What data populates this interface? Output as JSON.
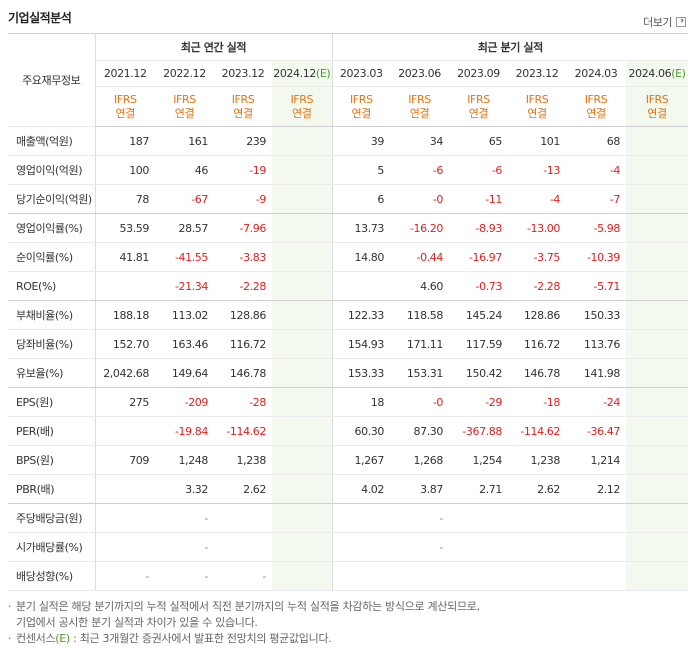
{
  "header": {
    "title": "기업실적분석",
    "more": "더보기"
  },
  "table": {
    "corner": "주요재무정보",
    "groups": [
      {
        "label": "최근 연간 실적",
        "span": 4
      },
      {
        "label": "최근 분기 실적",
        "span": 6
      }
    ],
    "columns": [
      {
        "period": "2021.12",
        "standard": "IFRS",
        "scope": "연결"
      },
      {
        "period": "2022.12",
        "standard": "IFRS",
        "scope": "연결"
      },
      {
        "period": "2023.12",
        "standard": "IFRS",
        "scope": "연결"
      },
      {
        "period": "2024.12",
        "estimate": "(E)",
        "standard": "IFRS",
        "scope": "연결"
      },
      {
        "period": "2023.03",
        "standard": "IFRS",
        "scope": "연결"
      },
      {
        "period": "2023.06",
        "standard": "IFRS",
        "scope": "연결"
      },
      {
        "period": "2023.09",
        "standard": "IFRS",
        "scope": "연결"
      },
      {
        "period": "2023.12",
        "standard": "IFRS",
        "scope": "연결"
      },
      {
        "period": "2024.03",
        "standard": "IFRS",
        "scope": "연결"
      },
      {
        "period": "2024.06",
        "estimate": "(E)",
        "standard": "IFRS",
        "scope": "연결"
      }
    ],
    "rows": [
      {
        "label": "매출액(억원)",
        "values": [
          "187",
          "161",
          "239",
          null,
          "39",
          "34",
          "65",
          "101",
          "68",
          null
        ]
      },
      {
        "label": "영업이익(억원)",
        "values": [
          "100",
          "46",
          "-19",
          null,
          "5",
          "-6",
          "-6",
          "-13",
          "-4",
          null
        ]
      },
      {
        "label": "당기순이익(억원)",
        "values": [
          "78",
          "-67",
          "-9",
          null,
          "6",
          "-0",
          "-11",
          "-4",
          "-7",
          null
        ]
      },
      {
        "label": "영업이익률(%)",
        "values": [
          "53.59",
          "28.57",
          "-7.96",
          null,
          "13.73",
          "-16.20",
          "-8.93",
          "-13.00",
          "-5.98",
          null
        ]
      },
      {
        "label": "순이익률(%)",
        "values": [
          "41.81",
          "-41.55",
          "-3.83",
          null,
          "14.80",
          "-0.44",
          "-16.97",
          "-3.75",
          "-10.39",
          null
        ]
      },
      {
        "label": "ROE(%)",
        "values": [
          null,
          "-21.34",
          "-2.28",
          null,
          null,
          "4.60",
          "-0.73",
          "-2.28",
          "-5.71",
          null
        ]
      },
      {
        "label": "부채비율(%)",
        "values": [
          "188.18",
          "113.02",
          "128.86",
          null,
          "122.33",
          "118.58",
          "145.24",
          "128.86",
          "150.33",
          null
        ]
      },
      {
        "label": "당좌비율(%)",
        "values": [
          "152.70",
          "163.46",
          "116.72",
          null,
          "154.93",
          "171.11",
          "117.59",
          "116.72",
          "113.76",
          null
        ]
      },
      {
        "label": "유보율(%)",
        "values": [
          "2,042.68",
          "149.64",
          "146.78",
          null,
          "153.33",
          "153.31",
          "150.42",
          "146.78",
          "141.98",
          null
        ]
      },
      {
        "label": "EPS(원)",
        "values": [
          "275",
          "-209",
          "-28",
          null,
          "18",
          "-0",
          "-29",
          "-18",
          "-24",
          null
        ]
      },
      {
        "label": "PER(배)",
        "values": [
          null,
          "-19.84",
          "-114.62",
          null,
          "60.30",
          "87.30",
          "-367.88",
          "-114.62",
          "-36.47",
          null
        ]
      },
      {
        "label": "BPS(원)",
        "values": [
          "709",
          "1,248",
          "1,238",
          null,
          "1,267",
          "1,268",
          "1,254",
          "1,238",
          "1,214",
          null
        ]
      },
      {
        "label": "PBR(배)",
        "values": [
          null,
          "3.32",
          "2.62",
          null,
          "4.02",
          "3.87",
          "2.71",
          "2.62",
          "2.12",
          null
        ]
      },
      {
        "label": "주당배당금(원)",
        "values": [
          null,
          "-",
          null,
          null,
          null,
          "-",
          null,
          null,
          null,
          null
        ]
      },
      {
        "label": "시가배당률(%)",
        "values": [
          null,
          "-",
          null,
          null,
          null,
          "-",
          null,
          null,
          null,
          null
        ]
      },
      {
        "label": "배당성향(%)",
        "values": [
          "-",
          "-",
          "-",
          null,
          null,
          null,
          null,
          null,
          null,
          null
        ]
      }
    ],
    "group_ends": [
      2,
      5,
      8,
      12
    ]
  },
  "notes": [
    {
      "lines": [
        "분기 실적은 해당 분기까지의 누적 실적에서 직전 분기까지의 누적 실적을 차감하는 방식으로 계산되므로,",
        "기업에서 공시한 분기 실적과 차이가 있을 수 있습니다."
      ]
    },
    {
      "term": "컨센서스",
      "estimate": "(E)",
      "text": " : 최근 3개월간 증권사에서 발표한 전망치의 평균값입니다."
    }
  ]
}
